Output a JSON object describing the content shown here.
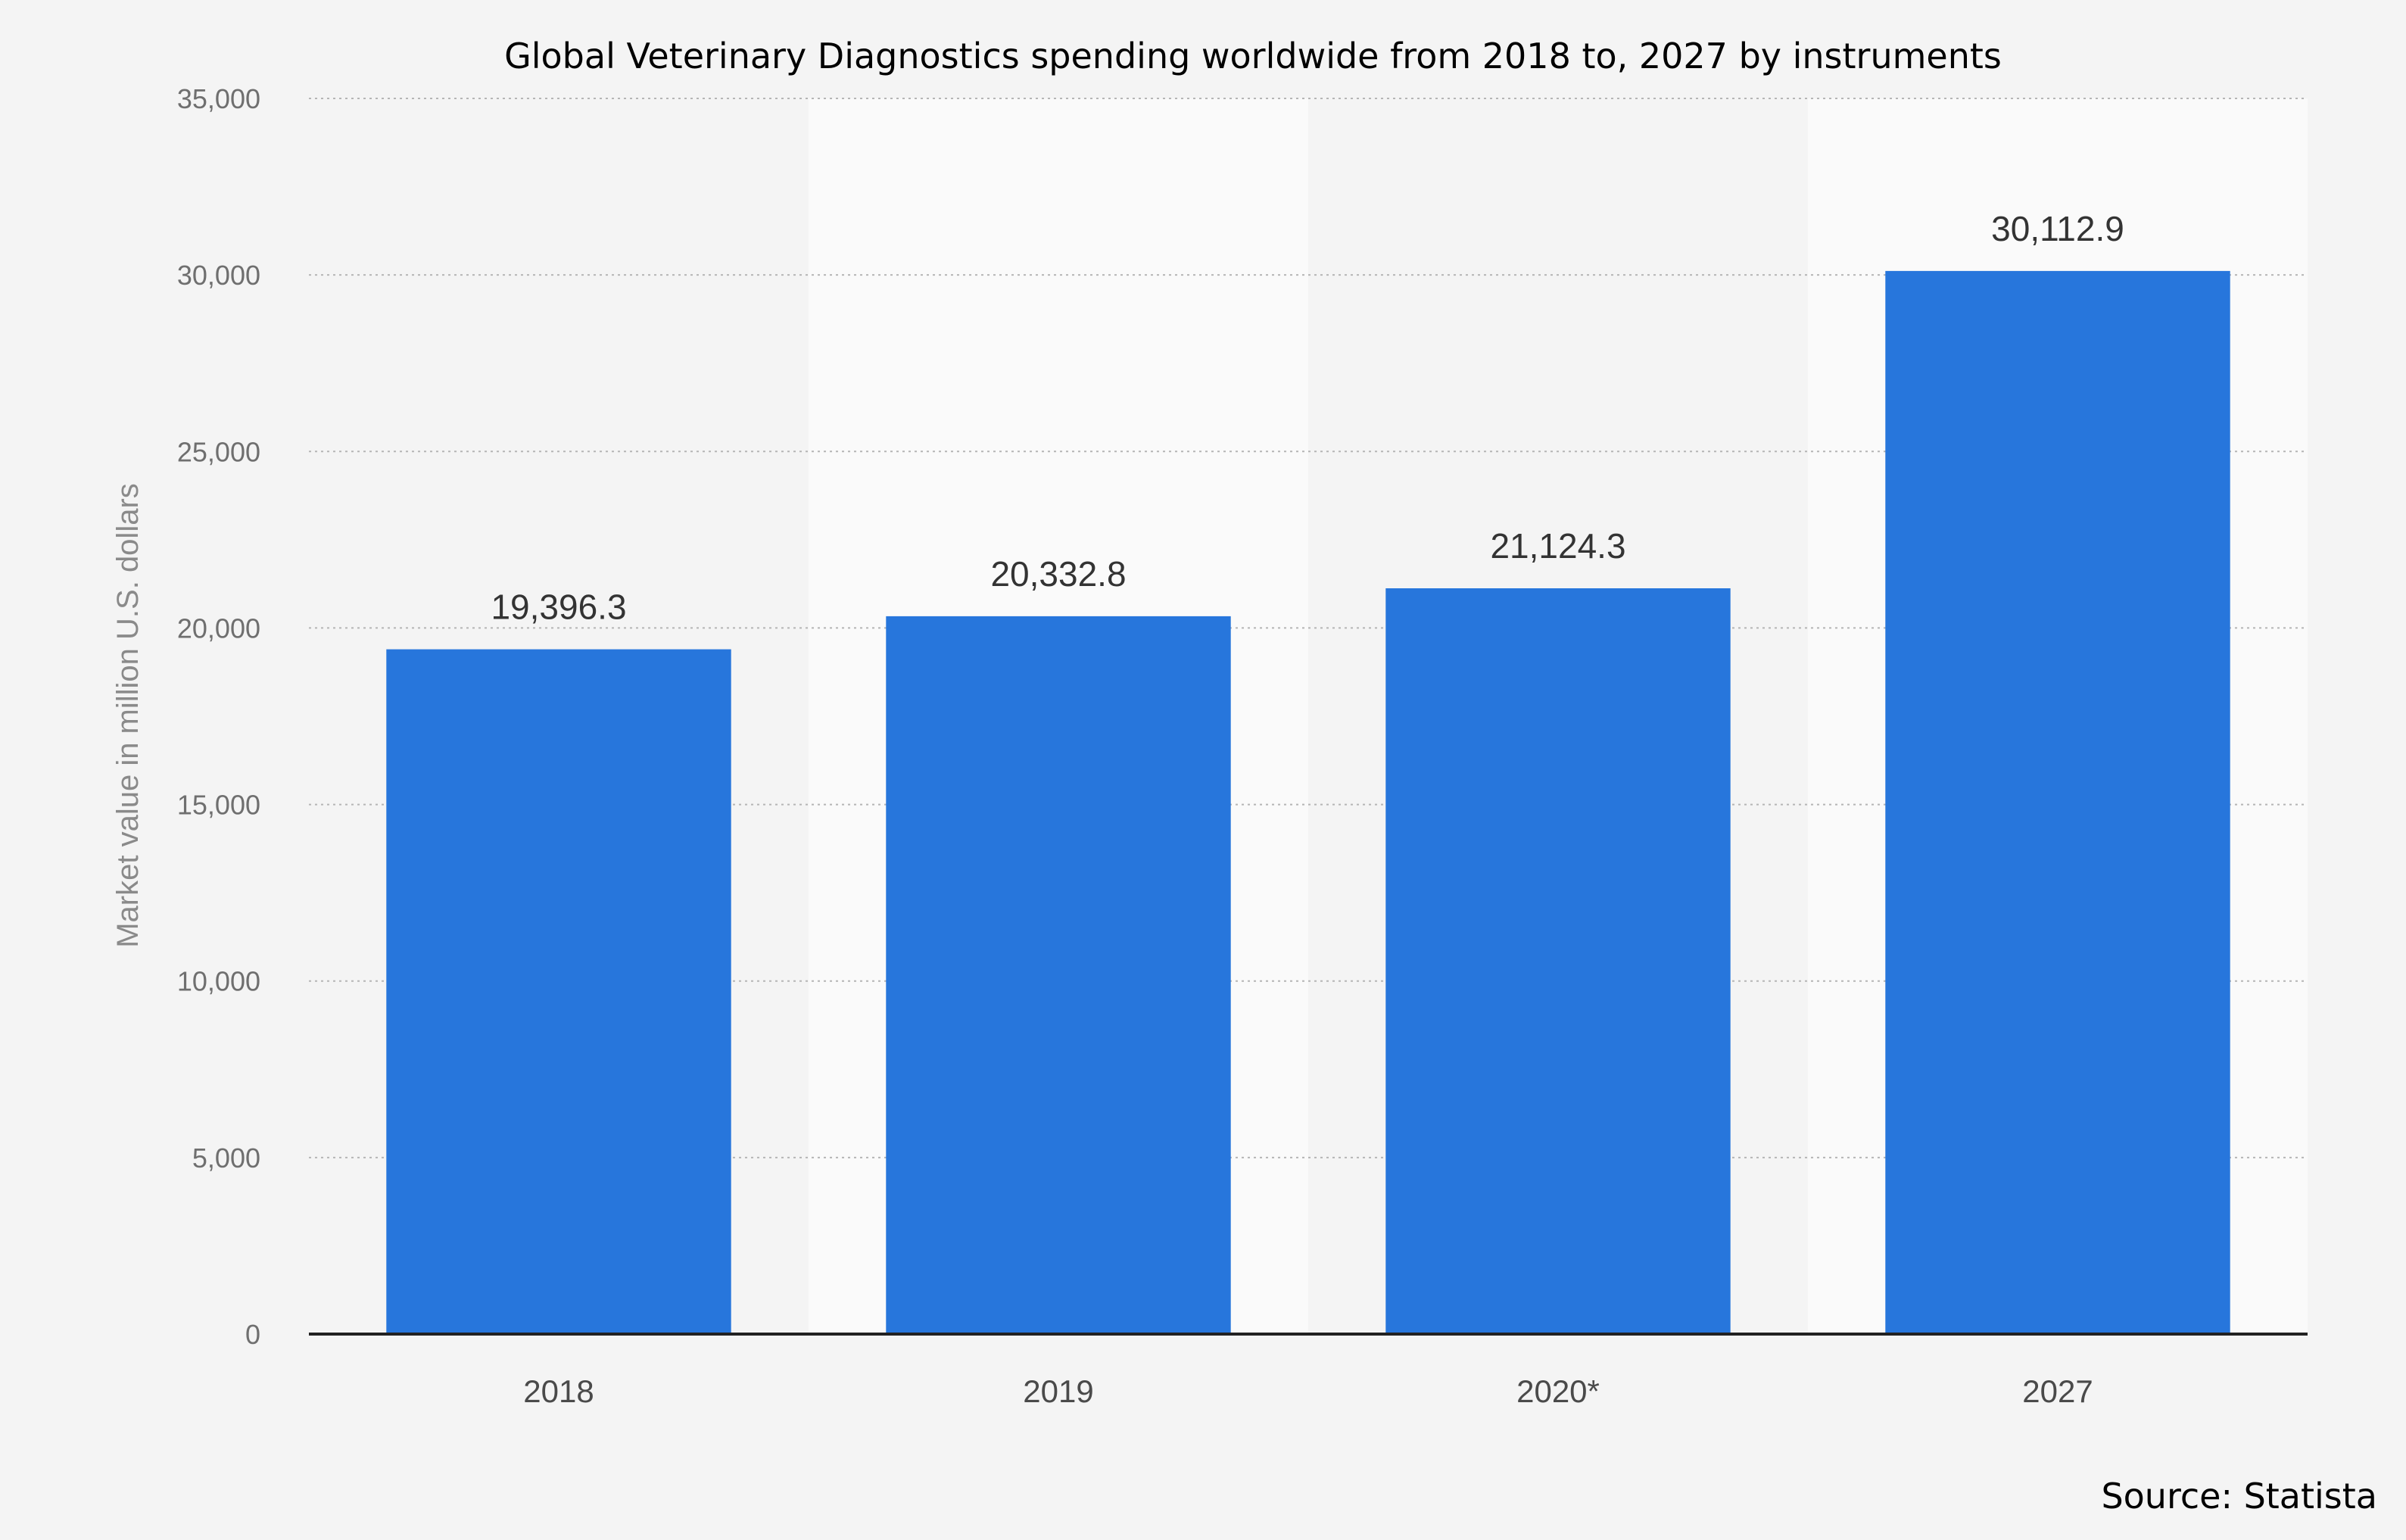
{
  "chart_data": {
    "type": "bar",
    "title": "Global Veterinary Diagnostics spending worldwide from 2018 to, 2027 by instruments",
    "ylabel": "Market value in million U.S. dollars",
    "xlabel": "",
    "categories": [
      "2018",
      "2019",
      "2020*",
      "2027"
    ],
    "values": [
      19396.3,
      20332.8,
      21124.3,
      30112.9
    ],
    "value_labels": [
      "19,396.3",
      "20,332.8",
      "21,124.3",
      "30,112.9"
    ],
    "ylim": [
      0,
      35000
    ],
    "yticks": [
      0,
      5000,
      10000,
      15000,
      20000,
      25000,
      30000,
      35000
    ],
    "ytick_labels": [
      "0",
      "5,000",
      "10,000",
      "15,000",
      "20,000",
      "25,000",
      "30,000",
      "35,000"
    ],
    "grid": true,
    "bar_color": "#2776dc",
    "source": "Source: Statista"
  }
}
